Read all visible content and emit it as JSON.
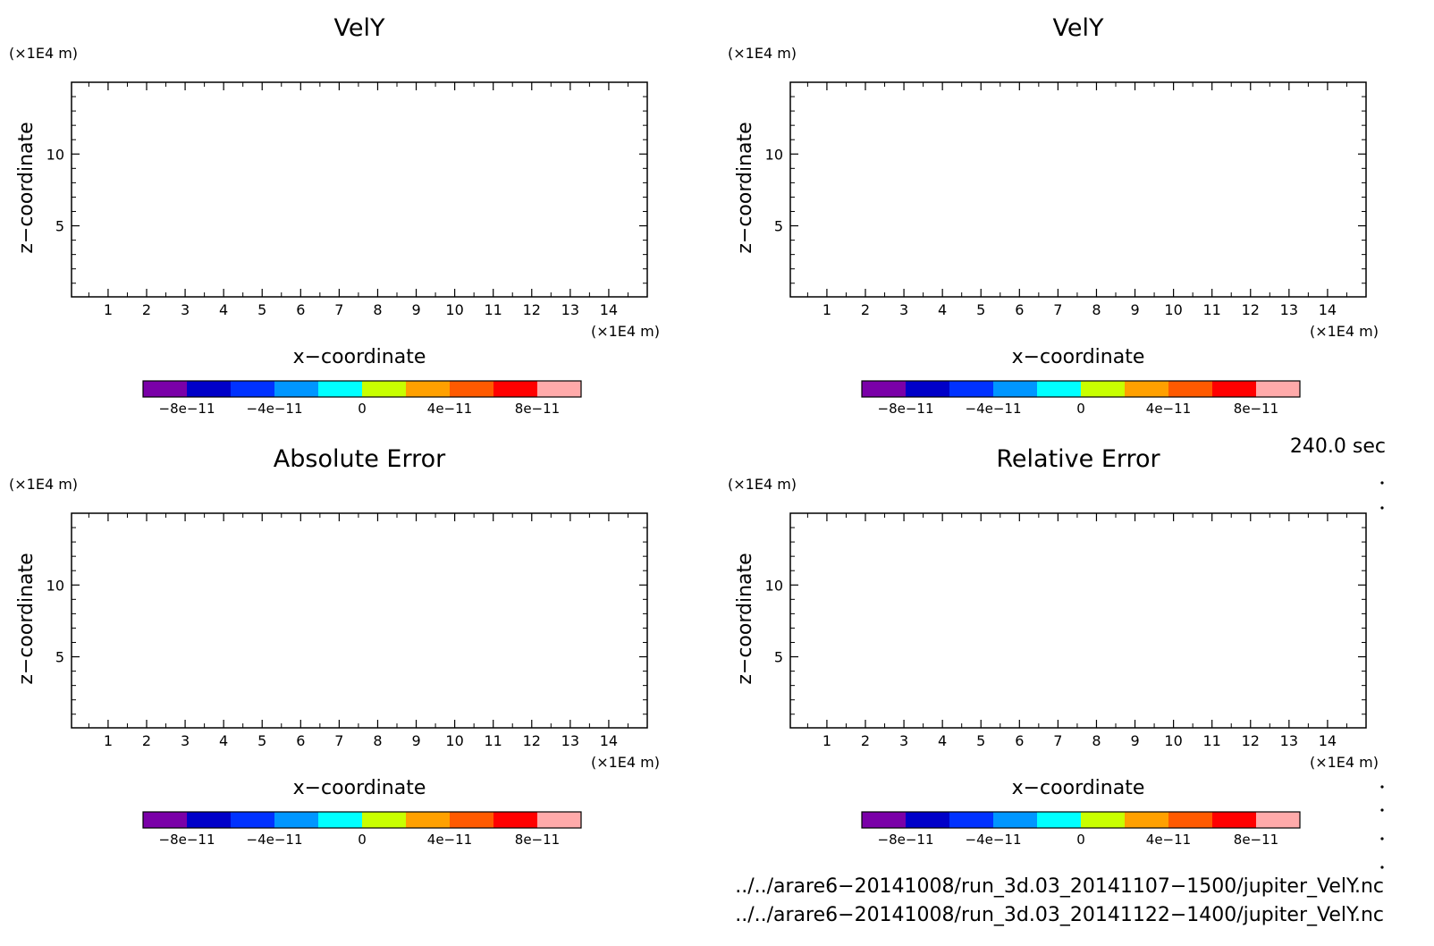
{
  "chart_data": [
    {
      "type": "heatmap",
      "title": "VelY",
      "xlabel": "x−coordinate",
      "ylabel": "z−coordinate",
      "x_unit": "(×1E4 m)",
      "y_unit": "(×1E4 m)",
      "xlim": [
        0.05,
        15.0
      ],
      "ylim": [
        0.05,
        15.0
      ],
      "x_ticks": [
        "1",
        "2",
        "3",
        "4",
        "5",
        "6",
        "7",
        "8",
        "9",
        "10",
        "11",
        "12",
        "13",
        "14"
      ],
      "y_ticks": [
        "5",
        "10"
      ],
      "values": [],
      "colorbar": {
        "colors": [
          "#7a00a8",
          "#0000c8",
          "#0032ff",
          "#0096ff",
          "#00ffff",
          "#c8ff00",
          "#ffa000",
          "#ff5a00",
          "#ff0000",
          "#ffaaaa"
        ],
        "tick_labels": [
          "−8e−11",
          "−4e−11",
          "0",
          "4e−11",
          "8e−11"
        ]
      }
    },
    {
      "type": "heatmap",
      "title": "VelY",
      "xlabel": "x−coordinate",
      "ylabel": "z−coordinate",
      "x_unit": "(×1E4 m)",
      "y_unit": "(×1E4 m)",
      "xlim": [
        0.05,
        15.0
      ],
      "ylim": [
        0.05,
        15.0
      ],
      "x_ticks": [
        "1",
        "2",
        "3",
        "4",
        "5",
        "6",
        "7",
        "8",
        "9",
        "10",
        "11",
        "12",
        "13",
        "14"
      ],
      "y_ticks": [
        "5",
        "10"
      ],
      "values": [],
      "colorbar": {
        "colors": [
          "#7a00a8",
          "#0000c8",
          "#0032ff",
          "#0096ff",
          "#00ffff",
          "#c8ff00",
          "#ffa000",
          "#ff5a00",
          "#ff0000",
          "#ffaaaa"
        ],
        "tick_labels": [
          "−8e−11",
          "−4e−11",
          "0",
          "4e−11",
          "8e−11"
        ]
      }
    },
    {
      "type": "heatmap",
      "title": "Absolute Error",
      "xlabel": "x−coordinate",
      "ylabel": "z−coordinate",
      "x_unit": "(×1E4 m)",
      "y_unit": "(×1E4 m)",
      "xlim": [
        0.05,
        15.0
      ],
      "ylim": [
        0.05,
        15.0
      ],
      "x_ticks": [
        "1",
        "2",
        "3",
        "4",
        "5",
        "6",
        "7",
        "8",
        "9",
        "10",
        "11",
        "12",
        "13",
        "14"
      ],
      "y_ticks": [
        "5",
        "10"
      ],
      "values": [],
      "colorbar": {
        "colors": [
          "#7a00a8",
          "#0000c8",
          "#0032ff",
          "#0096ff",
          "#00ffff",
          "#c8ff00",
          "#ffa000",
          "#ff5a00",
          "#ff0000",
          "#ffaaaa"
        ],
        "tick_labels": [
          "−8e−11",
          "−4e−11",
          "0",
          "4e−11",
          "8e−11"
        ]
      }
    },
    {
      "type": "heatmap",
      "title": "Relative Error",
      "xlabel": "x−coordinate",
      "ylabel": "z−coordinate",
      "x_unit": "(×1E4 m)",
      "y_unit": "(×1E4 m)",
      "xlim": [
        0.05,
        15.0
      ],
      "ylim": [
        0.05,
        15.0
      ],
      "x_ticks": [
        "1",
        "2",
        "3",
        "4",
        "5",
        "6",
        "7",
        "8",
        "9",
        "10",
        "11",
        "12",
        "13",
        "14"
      ],
      "y_ticks": [
        "5",
        "10"
      ],
      "values": [],
      "colorbar": {
        "colors": [
          "#7a00a8",
          "#0000c8",
          "#0032ff",
          "#0096ff",
          "#00ffff",
          "#c8ff00",
          "#ffa000",
          "#ff5a00",
          "#ff0000",
          "#ffaaaa"
        ],
        "tick_labels": [
          "−8e−11",
          "−4e−11",
          "0",
          "4e−11",
          "8e−11"
        ]
      }
    }
  ],
  "time_label": "240.0 sec",
  "file_paths": [
    "../../arare6−20141008/run_3d.03_20141107−1500/jupiter_VelY.nc",
    "../../arare6−20141008/run_3d.03_20141122−1400/jupiter_VelY.nc"
  ]
}
